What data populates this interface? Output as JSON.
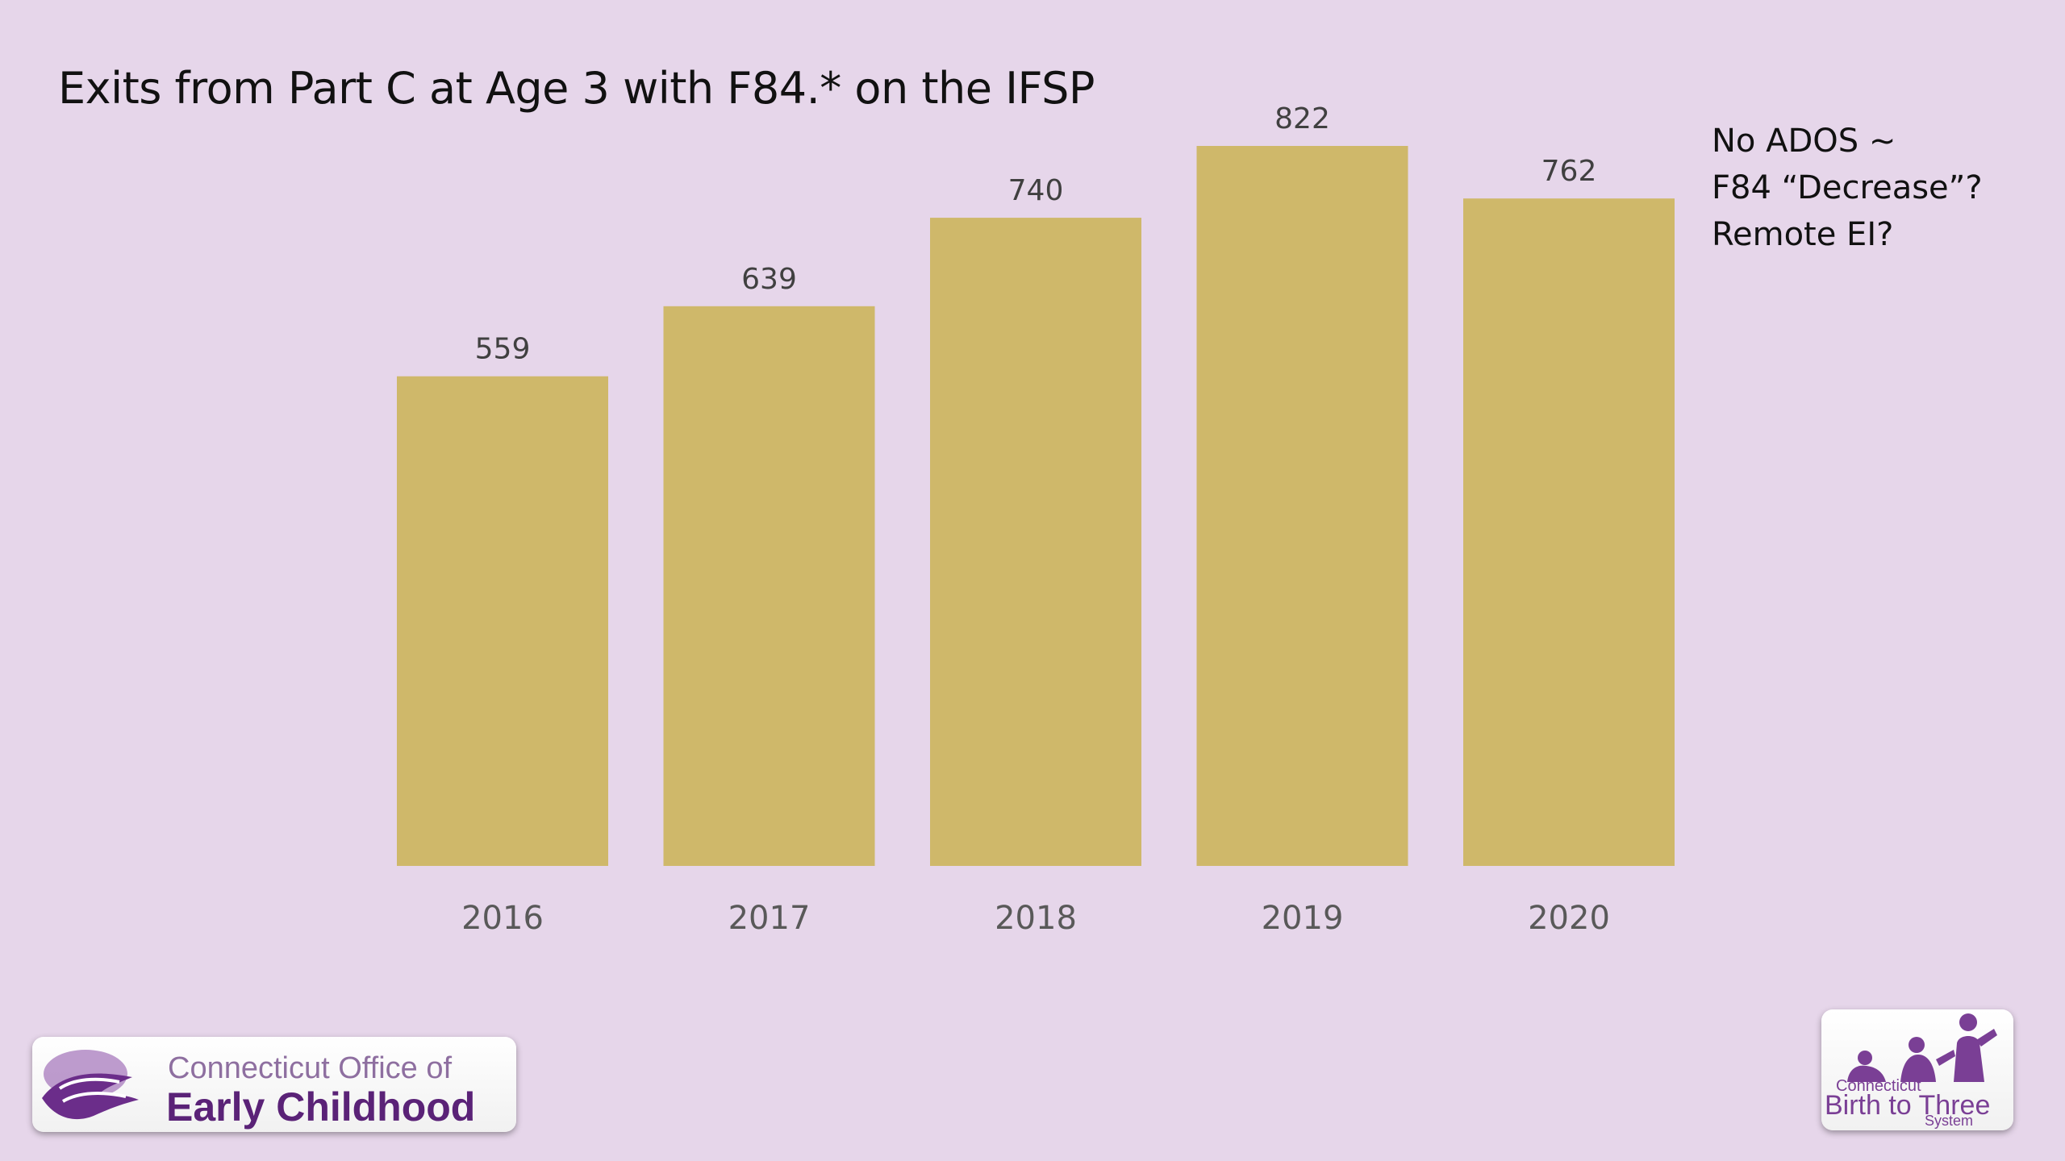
{
  "slide": {
    "title": "Exits from Part C at Age 3 with F84.* on the IFSP",
    "notes": [
      "No ADOS ~",
      "F84 “Decrease”?",
      "Remote EI?"
    ]
  },
  "chart_data": {
    "type": "bar",
    "title": "Exits from Part C at Age 3 with F84.* on the IFSP",
    "categories": [
      "2016",
      "2017",
      "2018",
      "2019",
      "2020"
    ],
    "values": [
      559,
      639,
      740,
      822,
      762
    ],
    "data_labels": [
      "559",
      "639",
      "740",
      "822",
      "762"
    ],
    "xlabel": "",
    "ylabel": "",
    "ylim": [
      0,
      822
    ],
    "grid": false,
    "legend": "none",
    "bar_color": "#cfb86a"
  },
  "logos": {
    "oec": {
      "line1": "Connecticut Office of",
      "line2": "Early Childhood"
    },
    "b23": {
      "line1": "Connecticut",
      "line2": "Birth to Three",
      "line3": "System"
    }
  },
  "colors": {
    "background": "#e6d6ea",
    "bar": "#cfb86a",
    "text": "#111111",
    "axis_text": "#595959",
    "brand_purple": "#5a2277"
  }
}
